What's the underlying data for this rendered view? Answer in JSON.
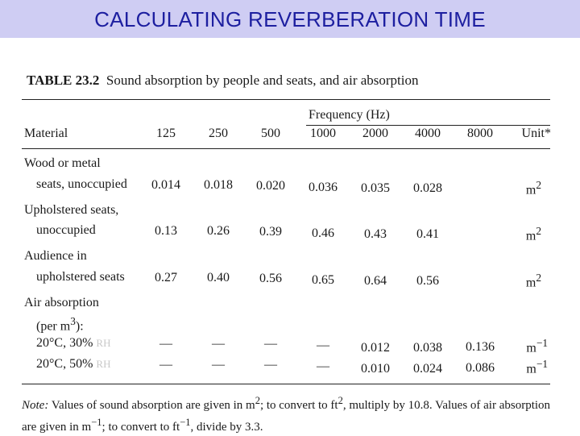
{
  "header": {
    "title": "CALCULATING REVERBERATION TIME"
  },
  "table": {
    "number": "TABLE 23.2",
    "caption": "Sound absorption by people and seats, and air absorption",
    "frequency_label": "Frequency (Hz)",
    "material_label": "Material",
    "unit_label": "Unit*",
    "frequencies": [
      "125",
      "250",
      "500",
      "1000",
      "2000",
      "4000",
      "8000"
    ],
    "rows": [
      {
        "label1": "Wood or metal",
        "label2": "seats, unoccupied",
        "values": [
          "0.014",
          "0.018",
          "0.020",
          "0.036",
          "0.035",
          "0.028",
          ""
        ],
        "unit": "m",
        "unit_exp": "2"
      },
      {
        "label1": "Upholstered seats,",
        "label2": "unoccupied",
        "values": [
          "0.13",
          "0.26",
          "0.39",
          "0.46",
          "0.43",
          "0.41",
          ""
        ],
        "unit": "m",
        "unit_exp": "2"
      },
      {
        "label1": "Audience in",
        "label2": "upholstered seats",
        "values": [
          "0.27",
          "0.40",
          "0.56",
          "0.65",
          "0.64",
          "0.56",
          ""
        ],
        "unit": "m",
        "unit_exp": "2"
      }
    ],
    "air": {
      "label1": "Air absorption",
      "label2_pre": "(per m",
      "label2_exp": "3",
      "label2_post": "):",
      "rows": [
        {
          "label": "20°C, 30%",
          "rh": "RH",
          "values": [
            "—",
            "—",
            "—",
            "—",
            "0.012",
            "0.038",
            "0.136"
          ],
          "unit": "m",
          "unit_exp": "−1"
        },
        {
          "label": "20°C, 50%",
          "rh": "RH",
          "values": [
            "—",
            "—",
            "—",
            "—",
            "0.010",
            "0.024",
            "0.086"
          ],
          "unit": "m",
          "unit_exp": "−1"
        }
      ]
    },
    "note": {
      "label": "Note:",
      "t1": "Values of sound absorption are given in m",
      "e1": "2",
      "t2": "; to convert to ft",
      "e2": "2",
      "t3": ", multiply by 10.8. Values of air absorption are given in m",
      "e3": "−1",
      "t4": "; to convert to ft",
      "e4": "−1",
      "t5": ", divide by 3.3."
    }
  }
}
